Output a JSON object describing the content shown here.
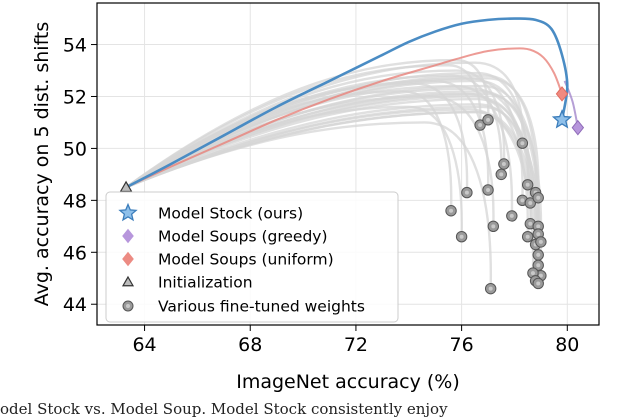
{
  "chart_data": {
    "type": "scatter",
    "xlabel": "ImageNet accuracy (%)",
    "ylabel": "Avg. accuracy on 5 dist. shifts",
    "xlim": [
      62.2,
      81.2
    ],
    "ylim": [
      43.2,
      55.6
    ],
    "xticks": [
      64,
      68,
      72,
      76,
      80
    ],
    "yticks": [
      44,
      46,
      48,
      50,
      52,
      54
    ],
    "grid": true,
    "legend_position": "lower-left",
    "colors": {
      "model_stock": "#4a8cc4",
      "model_soups_greedy": "#a98fcf",
      "model_soups_uniform": "#e8827a",
      "initialization": "#888888",
      "fine_tuned": "#8a8a8a",
      "interp_curves": "#d6d6d6"
    },
    "legend": [
      {
        "label": "Model Stock (ours)",
        "marker": "star",
        "color": "#6aa5d8"
      },
      {
        "label": "Model Soups (greedy)",
        "marker": "diamond",
        "color": "#b796dc"
      },
      {
        "label": "Model Soups (uniform)",
        "marker": "diamond",
        "color": "#ec8b83"
      },
      {
        "label": "Initialization",
        "marker": "triangle",
        "color": "#888888"
      },
      {
        "label": "Various fine-tuned weights",
        "marker": "circle",
        "color": "#8a8a8a"
      }
    ],
    "initialization": {
      "x": 63.3,
      "y": 48.5
    },
    "model_stock": {
      "point": {
        "x": 79.8,
        "y": 51.1
      },
      "curve": [
        [
          63.3,
          48.5
        ],
        [
          65,
          49.4
        ],
        [
          67,
          50.5
        ],
        [
          69,
          51.6
        ],
        [
          71,
          52.6
        ],
        [
          72,
          53.1
        ],
        [
          73,
          53.6
        ],
        [
          74,
          54.1
        ],
        [
          75,
          54.5
        ],
        [
          76,
          54.8
        ],
        [
          77,
          54.95
        ],
        [
          78,
          55.0
        ],
        [
          78.8,
          54.95
        ],
        [
          79.4,
          54.6
        ],
        [
          79.8,
          53.6
        ],
        [
          80.0,
          52.4
        ],
        [
          79.8,
          51.1
        ]
      ]
    },
    "model_soups_greedy": {
      "point": {
        "x": 80.4,
        "y": 50.8
      },
      "curve": [
        [
          79.9,
          52.6
        ],
        [
          80.2,
          51.8
        ],
        [
          80.4,
          50.8
        ]
      ]
    },
    "model_soups_uniform": {
      "point": {
        "x": 79.8,
        "y": 52.1
      },
      "curve": [
        [
          63.3,
          48.5
        ],
        [
          65,
          49.3
        ],
        [
          67,
          50.2
        ],
        [
          69,
          51.1
        ],
        [
          71,
          51.9
        ],
        [
          73,
          52.6
        ],
        [
          75,
          53.2
        ],
        [
          76,
          53.5
        ],
        [
          77,
          53.75
        ],
        [
          78,
          53.85
        ],
        [
          78.6,
          53.8
        ],
        [
          79.1,
          53.5
        ],
        [
          79.5,
          52.9
        ],
        [
          79.8,
          52.1
        ]
      ]
    },
    "fine_tuned_weights": [
      [
        75.6,
        47.6
      ],
      [
        76.2,
        48.3
      ],
      [
        76.7,
        50.9
      ],
      [
        77.0,
        51.1
      ],
      [
        77.2,
        47.0
      ],
      [
        77.0,
        48.4
      ],
      [
        77.6,
        49.4
      ],
      [
        77.5,
        49.0
      ],
      [
        77.9,
        47.4
      ],
      [
        78.3,
        50.2
      ],
      [
        78.3,
        48.0
      ],
      [
        78.5,
        48.6
      ],
      [
        78.6,
        47.9
      ],
      [
        78.8,
        48.3
      ],
      [
        78.9,
        48.1
      ],
      [
        78.6,
        47.1
      ],
      [
        78.5,
        46.6
      ],
      [
        78.9,
        47.0
      ],
      [
        78.9,
        46.7
      ],
      [
        78.8,
        46.3
      ],
      [
        79.0,
        46.4
      ],
      [
        78.9,
        45.9
      ],
      [
        78.9,
        45.5
      ],
      [
        79.0,
        45.1
      ],
      [
        78.7,
        45.2
      ],
      [
        78.8,
        44.9
      ],
      [
        78.9,
        44.8
      ],
      [
        77.1,
        44.6
      ],
      [
        76.0,
        46.6
      ]
    ],
    "fine_tuned_curves": [
      {
        "endpoint": [
          75.6,
          47.6
        ],
        "peak": [
          73.8,
          52.2
        ]
      },
      {
        "endpoint": [
          76.2,
          48.3
        ],
        "peak": [
          74.2,
          52.5
        ]
      },
      {
        "endpoint": [
          76.7,
          50.9
        ],
        "peak": [
          75.5,
          53.2
        ]
      },
      {
        "endpoint": [
          77.0,
          51.1
        ],
        "peak": [
          75.8,
          53.4
        ]
      },
      {
        "endpoint": [
          77.2,
          47.0
        ],
        "peak": [
          74.8,
          52.0
        ]
      },
      {
        "endpoint": [
          77.0,
          48.4
        ],
        "peak": [
          75.0,
          52.6
        ]
      },
      {
        "endpoint": [
          77.6,
          49.4
        ],
        "peak": [
          75.8,
          53.0
        ]
      },
      {
        "endpoint": [
          77.5,
          49.0
        ],
        "peak": [
          75.6,
          52.8
        ]
      },
      {
        "endpoint": [
          77.9,
          47.4
        ],
        "peak": [
          75.8,
          52.4
        ]
      },
      {
        "endpoint": [
          78.3,
          50.2
        ],
        "peak": [
          76.5,
          53.3
        ]
      },
      {
        "endpoint": [
          78.3,
          48.0
        ],
        "peak": [
          76.3,
          52.7
        ]
      },
      {
        "endpoint": [
          78.5,
          48.6
        ],
        "peak": [
          76.6,
          52.9
        ]
      },
      {
        "endpoint": [
          78.6,
          47.9
        ],
        "peak": [
          76.6,
          52.6
        ]
      },
      {
        "endpoint": [
          78.8,
          48.3
        ],
        "peak": [
          76.9,
          52.8
        ]
      },
      {
        "endpoint": [
          78.9,
          48.1
        ],
        "peak": [
          77.0,
          52.7
        ]
      },
      {
        "endpoint": [
          78.6,
          47.1
        ],
        "peak": [
          76.4,
          52.3
        ]
      },
      {
        "endpoint": [
          78.5,
          46.6
        ],
        "peak": [
          76.2,
          52.1
        ]
      },
      {
        "endpoint": [
          78.9,
          47.0
        ],
        "peak": [
          76.8,
          52.4
        ]
      },
      {
        "endpoint": [
          78.9,
          46.7
        ],
        "peak": [
          76.7,
          52.2
        ]
      },
      {
        "endpoint": [
          78.8,
          46.3
        ],
        "peak": [
          76.5,
          52.0
        ]
      },
      {
        "endpoint": [
          79.0,
          46.4
        ],
        "peak": [
          76.9,
          52.1
        ]
      },
      {
        "endpoint": [
          78.9,
          45.9
        ],
        "peak": [
          76.6,
          51.9
        ]
      },
      {
        "endpoint": [
          78.9,
          45.5
        ],
        "peak": [
          76.6,
          51.7
        ]
      },
      {
        "endpoint": [
          79.0,
          45.1
        ],
        "peak": [
          76.8,
          51.6
        ]
      },
      {
        "endpoint": [
          78.7,
          45.2
        ],
        "peak": [
          76.3,
          51.5
        ]
      },
      {
        "endpoint": [
          78.8,
          44.9
        ],
        "peak": [
          76.5,
          51.4
        ]
      },
      {
        "endpoint": [
          78.9,
          44.8
        ],
        "peak": [
          76.6,
          51.4
        ]
      },
      {
        "endpoint": [
          77.1,
          44.6
        ],
        "peak": [
          74.6,
          51.0
        ]
      },
      {
        "endpoint": [
          76.0,
          46.6
        ],
        "peak": [
          74.0,
          51.6
        ]
      }
    ]
  },
  "caption": "odel Stock vs. Model Soup. Model Stock consistently enjoy"
}
